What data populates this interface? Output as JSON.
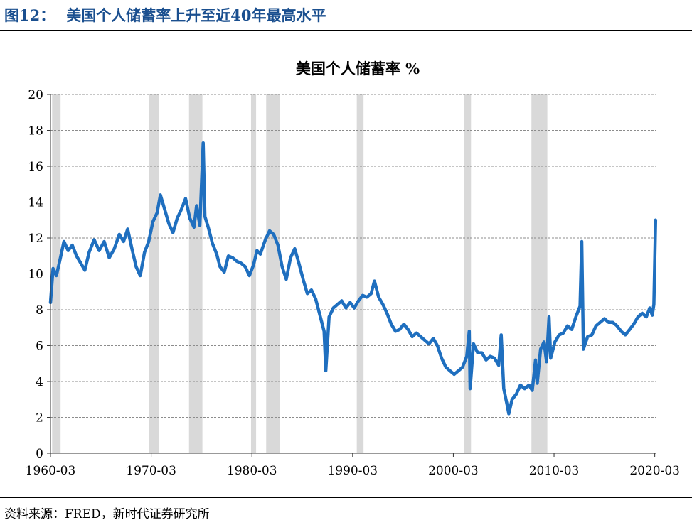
{
  "figure": {
    "label": "图12：",
    "title": "美国个人储蓄率上升至近40年最高水平",
    "source": "资料来源：FRED，新时代证券研究所",
    "title_color": "#1a4f8f"
  },
  "chart_data": {
    "type": "line",
    "title": "美国个人储蓄率 %",
    "xlabel": "",
    "ylabel": "",
    "x_tick_labels": [
      "1960-03",
      "1970-03",
      "1980-03",
      "1990-03",
      "2000-03",
      "2010-03",
      "2020-03"
    ],
    "y_tick_labels": [
      "0",
      "2",
      "4",
      "6",
      "8",
      "10",
      "12",
      "14",
      "16",
      "18",
      "20"
    ],
    "ylim": [
      0,
      20
    ],
    "xlim": [
      1960.167,
      2020.333
    ],
    "grid": "horizontal",
    "legend": "none",
    "line_color": "#1f6fbf",
    "recession_color": "#d9d9d9",
    "recessions": [
      [
        1960.33,
        1961.17
      ],
      [
        1969.92,
        1970.92
      ],
      [
        1973.92,
        1975.25
      ],
      [
        1980.08,
        1980.58
      ],
      [
        1981.58,
        1982.92
      ],
      [
        1990.58,
        1991.25
      ],
      [
        2001.25,
        2001.92
      ],
      [
        2007.92,
        2009.5
      ]
    ],
    "series": [
      {
        "points": [
          [
            1960.17,
            8.4
          ],
          [
            1960.42,
            10.3
          ],
          [
            1960.75,
            9.9
          ],
          [
            1961.08,
            10.7
          ],
          [
            1961.5,
            11.8
          ],
          [
            1961.92,
            11.3
          ],
          [
            1962.33,
            11.6
          ],
          [
            1962.75,
            11.0
          ],
          [
            1963.17,
            10.6
          ],
          [
            1963.58,
            10.2
          ],
          [
            1964.0,
            11.2
          ],
          [
            1964.5,
            11.9
          ],
          [
            1965.0,
            11.3
          ],
          [
            1965.5,
            11.8
          ],
          [
            1966.0,
            10.9
          ],
          [
            1966.5,
            11.4
          ],
          [
            1967.0,
            12.2
          ],
          [
            1967.42,
            11.8
          ],
          [
            1967.83,
            12.5
          ],
          [
            1968.25,
            11.4
          ],
          [
            1968.67,
            10.4
          ],
          [
            1969.08,
            9.9
          ],
          [
            1969.5,
            11.2
          ],
          [
            1969.92,
            11.8
          ],
          [
            1970.33,
            12.9
          ],
          [
            1970.75,
            13.4
          ],
          [
            1971.08,
            14.4
          ],
          [
            1971.5,
            13.6
          ],
          [
            1971.92,
            12.8
          ],
          [
            1972.33,
            12.3
          ],
          [
            1972.75,
            13.1
          ],
          [
            1973.17,
            13.6
          ],
          [
            1973.58,
            14.2
          ],
          [
            1974.0,
            13.1
          ],
          [
            1974.42,
            12.6
          ],
          [
            1974.67,
            13.8
          ],
          [
            1975.0,
            12.7
          ],
          [
            1975.33,
            17.3
          ],
          [
            1975.5,
            13.2
          ],
          [
            1975.83,
            12.6
          ],
          [
            1976.25,
            11.7
          ],
          [
            1976.67,
            11.1
          ],
          [
            1977.0,
            10.4
          ],
          [
            1977.42,
            10.1
          ],
          [
            1977.83,
            11.0
          ],
          [
            1978.25,
            10.9
          ],
          [
            1978.67,
            10.7
          ],
          [
            1979.08,
            10.6
          ],
          [
            1979.5,
            10.4
          ],
          [
            1979.92,
            9.9
          ],
          [
            1980.33,
            10.5
          ],
          [
            1980.67,
            11.3
          ],
          [
            1981.0,
            11.1
          ],
          [
            1981.5,
            11.9
          ],
          [
            1981.92,
            12.4
          ],
          [
            1982.33,
            12.2
          ],
          [
            1982.75,
            11.6
          ],
          [
            1983.17,
            10.4
          ],
          [
            1983.58,
            9.7
          ],
          [
            1984.0,
            10.9
          ],
          [
            1984.42,
            11.4
          ],
          [
            1984.83,
            10.6
          ],
          [
            1985.25,
            9.7
          ],
          [
            1985.67,
            8.9
          ],
          [
            1986.08,
            9.1
          ],
          [
            1986.5,
            8.6
          ],
          [
            1986.92,
            7.7
          ],
          [
            1987.33,
            6.8
          ],
          [
            1987.5,
            4.6
          ],
          [
            1987.83,
            7.6
          ],
          [
            1988.25,
            8.1
          ],
          [
            1988.67,
            8.3
          ],
          [
            1989.08,
            8.5
          ],
          [
            1989.5,
            8.1
          ],
          [
            1989.92,
            8.4
          ],
          [
            1990.33,
            8.1
          ],
          [
            1990.75,
            8.5
          ],
          [
            1991.17,
            8.8
          ],
          [
            1991.58,
            8.7
          ],
          [
            1992.0,
            8.9
          ],
          [
            1992.33,
            9.6
          ],
          [
            1992.75,
            8.7
          ],
          [
            1993.17,
            8.3
          ],
          [
            1993.58,
            7.8
          ],
          [
            1994.0,
            7.2
          ],
          [
            1994.42,
            6.8
          ],
          [
            1994.83,
            6.9
          ],
          [
            1995.25,
            7.2
          ],
          [
            1995.67,
            6.9
          ],
          [
            1996.08,
            6.5
          ],
          [
            1996.5,
            6.7
          ],
          [
            1996.92,
            6.5
          ],
          [
            1997.33,
            6.3
          ],
          [
            1997.75,
            6.1
          ],
          [
            1998.17,
            6.4
          ],
          [
            1998.58,
            6.0
          ],
          [
            1999.0,
            5.3
          ],
          [
            1999.42,
            4.8
          ],
          [
            1999.83,
            4.6
          ],
          [
            2000.25,
            4.4
          ],
          [
            2000.67,
            4.6
          ],
          [
            2001.08,
            4.8
          ],
          [
            2001.5,
            5.4
          ],
          [
            2001.75,
            6.8
          ],
          [
            2001.83,
            3.6
          ],
          [
            2002.17,
            6.1
          ],
          [
            2002.58,
            5.6
          ],
          [
            2003.0,
            5.6
          ],
          [
            2003.42,
            5.2
          ],
          [
            2003.83,
            5.4
          ],
          [
            2004.25,
            5.3
          ],
          [
            2004.67,
            4.9
          ],
          [
            2004.92,
            6.6
          ],
          [
            2005.17,
            3.6
          ],
          [
            2005.5,
            2.7
          ],
          [
            2005.67,
            2.2
          ],
          [
            2006.0,
            3.0
          ],
          [
            2006.42,
            3.3
          ],
          [
            2006.83,
            3.8
          ],
          [
            2007.25,
            3.6
          ],
          [
            2007.67,
            3.8
          ],
          [
            2008.0,
            3.5
          ],
          [
            2008.33,
            5.2
          ],
          [
            2008.5,
            3.9
          ],
          [
            2008.83,
            5.8
          ],
          [
            2009.17,
            6.2
          ],
          [
            2009.42,
            5.1
          ],
          [
            2009.67,
            7.6
          ],
          [
            2009.83,
            5.3
          ],
          [
            2010.25,
            6.2
          ],
          [
            2010.67,
            6.6
          ],
          [
            2011.08,
            6.7
          ],
          [
            2011.5,
            7.1
          ],
          [
            2011.92,
            6.9
          ],
          [
            2012.33,
            7.6
          ],
          [
            2012.75,
            8.2
          ],
          [
            2012.92,
            11.8
          ],
          [
            2013.08,
            5.8
          ],
          [
            2013.5,
            6.5
          ],
          [
            2013.92,
            6.6
          ],
          [
            2014.33,
            7.1
          ],
          [
            2014.75,
            7.3
          ],
          [
            2015.17,
            7.5
          ],
          [
            2015.58,
            7.3
          ],
          [
            2016.0,
            7.3
          ],
          [
            2016.42,
            7.1
          ],
          [
            2016.83,
            6.8
          ],
          [
            2017.25,
            6.6
          ],
          [
            2017.67,
            6.9
          ],
          [
            2018.08,
            7.2
          ],
          [
            2018.5,
            7.6
          ],
          [
            2018.92,
            7.8
          ],
          [
            2019.33,
            7.6
          ],
          [
            2019.67,
            8.1
          ],
          [
            2019.92,
            7.7
          ],
          [
            2020.08,
            8.3
          ],
          [
            2020.25,
            13.0
          ]
        ]
      }
    ]
  }
}
